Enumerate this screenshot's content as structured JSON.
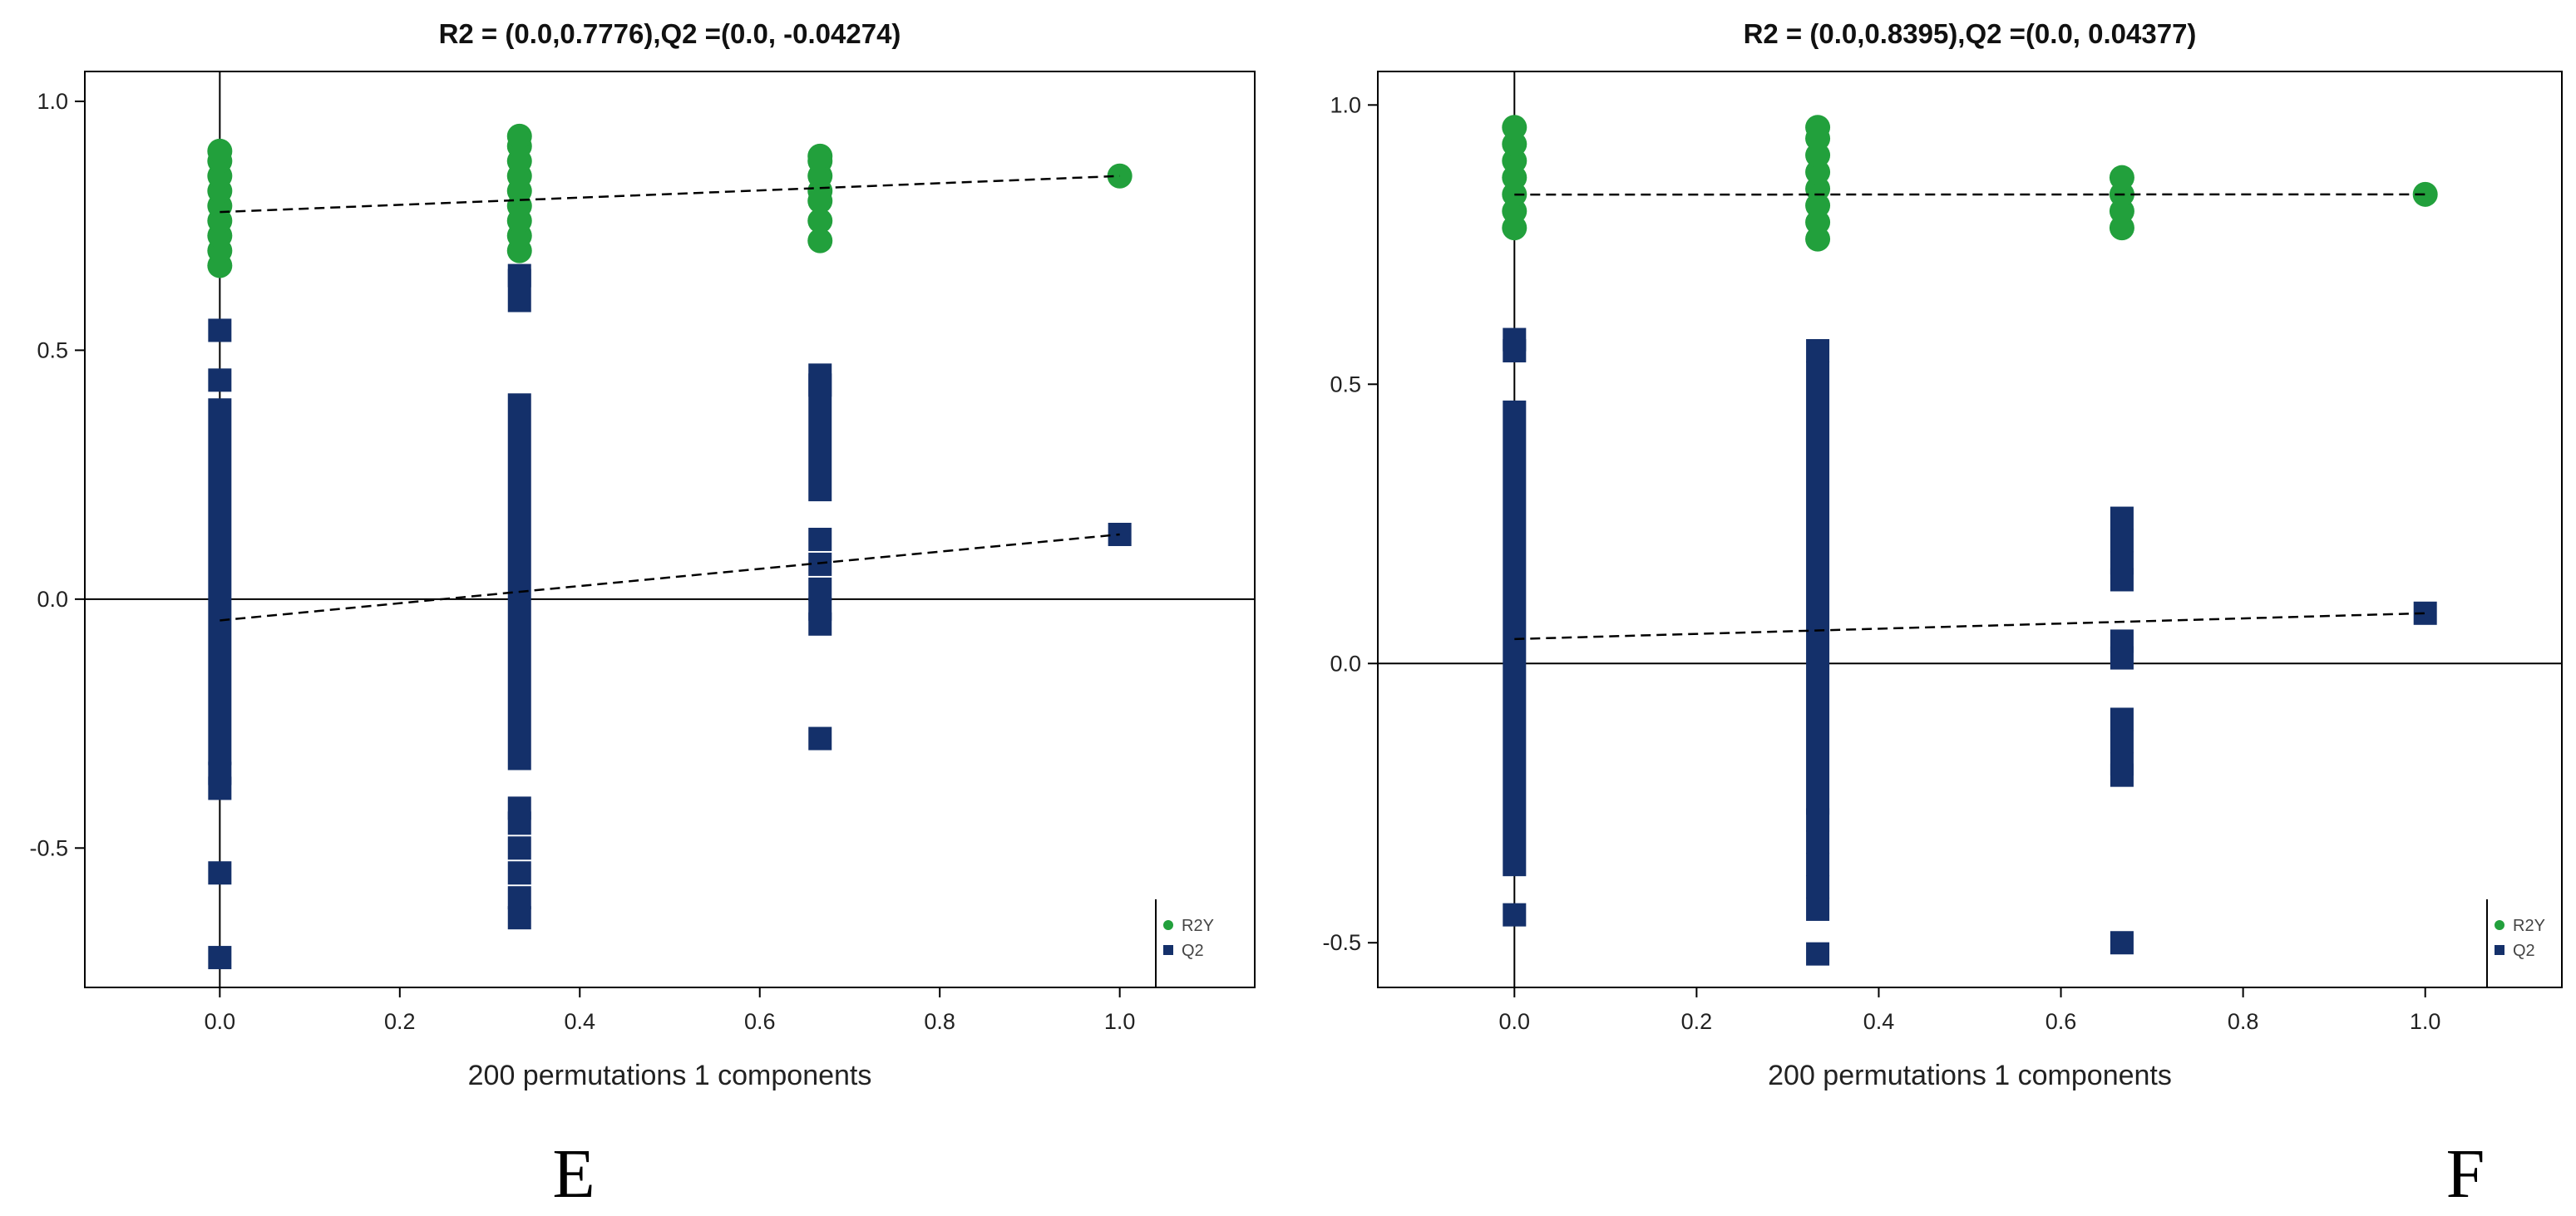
{
  "chart_data": [
    {
      "type": "scatter",
      "panel_label": "E",
      "title": "R2 = (0.0,0.7776),Q2 =(0.0, -0.04274)",
      "xlabel": "200 permutations 1 components",
      "ylabel": "",
      "xlim": [
        -0.15,
        1.15
      ],
      "ylim": [
        -0.78,
        1.06
      ],
      "xticks": [
        0.0,
        0.2,
        0.4,
        0.6,
        0.8,
        1.0
      ],
      "xtick_labels": [
        "0.0",
        "0.2",
        "0.4",
        "0.6",
        "0.8",
        "1.0"
      ],
      "yticks": [
        -0.5,
        0.0,
        0.5,
        1.0
      ],
      "ytick_labels": [
        "-0.5",
        "0.0",
        "0.5",
        "1.0"
      ],
      "legend_position": "bottom-right",
      "series": [
        {
          "name": "R2Y",
          "marker": "circle",
          "color": "#22a03c",
          "points": [
            [
              0.0,
              0.67
            ],
            [
              0.0,
              0.7
            ],
            [
              0.0,
              0.73
            ],
            [
              0.0,
              0.76
            ],
            [
              0.0,
              0.79
            ],
            [
              0.0,
              0.82
            ],
            [
              0.0,
              0.85
            ],
            [
              0.0,
              0.88
            ],
            [
              0.0,
              0.9
            ],
            [
              0.333,
              0.7
            ],
            [
              0.333,
              0.73
            ],
            [
              0.333,
              0.76
            ],
            [
              0.333,
              0.79
            ],
            [
              0.333,
              0.82
            ],
            [
              0.333,
              0.85
            ],
            [
              0.333,
              0.88
            ],
            [
              0.333,
              0.91
            ],
            [
              0.333,
              0.93
            ],
            [
              0.667,
              0.72
            ],
            [
              0.667,
              0.76
            ],
            [
              0.667,
              0.8
            ],
            [
              0.667,
              0.82
            ],
            [
              0.667,
              0.85
            ],
            [
              0.667,
              0.88
            ],
            [
              0.667,
              0.89
            ],
            [
              1.0,
              0.85
            ]
          ]
        },
        {
          "name": "Q2",
          "marker": "square",
          "color": "#14306a",
          "points": [
            [
              0.0,
              0.54
            ],
            [
              0.0,
              0.44
            ],
            [
              0.0,
              -0.55
            ],
            [
              0.0,
              -0.72
            ],
            [
              0.0,
              -0.38
            ],
            [
              0.0,
              -0.35
            ],
            [
              0.333,
              0.65
            ],
            [
              0.333,
              -0.42
            ],
            [
              0.333,
              -0.45
            ],
            [
              0.333,
              -0.5
            ],
            [
              0.333,
              -0.55
            ],
            [
              0.333,
              -0.6
            ],
            [
              0.333,
              -0.64
            ],
            [
              0.667,
              0.43
            ],
            [
              0.667,
              0.12
            ],
            [
              0.667,
              0.07
            ],
            [
              0.667,
              0.02
            ],
            [
              0.667,
              -0.02
            ],
            [
              0.667,
              -0.05
            ],
            [
              0.667,
              -0.28
            ],
            [
              1.0,
              0.13
            ]
          ],
          "segments": [
            {
              "x": 0.0,
              "from": -0.31,
              "to": 0.38
            },
            {
              "x": 0.333,
              "from": -0.32,
              "to": 0.39
            },
            {
              "x": 0.333,
              "from": 0.6,
              "to": 0.64
            },
            {
              "x": 0.667,
              "from": 0.22,
              "to": 0.45
            }
          ]
        }
      ],
      "regression_lines": [
        {
          "series": "R2Y",
          "from": [
            0.0,
            0.7776
          ],
          "to": [
            1.0,
            0.85
          ]
        },
        {
          "series": "Q2",
          "from": [
            0.0,
            -0.04274
          ],
          "to": [
            1.0,
            0.13
          ]
        }
      ]
    },
    {
      "type": "scatter",
      "panel_label": "F",
      "title": "R2 = (0.0,0.8395),Q2 =(0.0, 0.04377)",
      "xlabel": "200 permutations 1 components",
      "ylabel": "",
      "xlim": [
        -0.15,
        1.15
      ],
      "ylim": [
        -0.58,
        1.06
      ],
      "xticks": [
        0.0,
        0.2,
        0.4,
        0.6,
        0.8,
        1.0
      ],
      "xtick_labels": [
        "0.0",
        "0.2",
        "0.4",
        "0.6",
        "0.8",
        "1.0"
      ],
      "yticks": [
        -0.5,
        0.0,
        0.5,
        1.0
      ],
      "ytick_labels": [
        "-0.5",
        "0.0",
        "0.5",
        "1.0"
      ],
      "legend_position": "bottom-right",
      "series": [
        {
          "name": "R2Y",
          "marker": "circle",
          "color": "#22a03c",
          "points": [
            [
              0.0,
              0.78
            ],
            [
              0.0,
              0.81
            ],
            [
              0.0,
              0.84
            ],
            [
              0.0,
              0.87
            ],
            [
              0.0,
              0.9
            ],
            [
              0.0,
              0.93
            ],
            [
              0.0,
              0.96
            ],
            [
              0.333,
              0.76
            ],
            [
              0.333,
              0.79
            ],
            [
              0.333,
              0.82
            ],
            [
              0.333,
              0.85
            ],
            [
              0.333,
              0.88
            ],
            [
              0.333,
              0.91
            ],
            [
              0.333,
              0.94
            ],
            [
              0.333,
              0.96
            ],
            [
              0.667,
              0.78
            ],
            [
              0.667,
              0.81
            ],
            [
              0.667,
              0.84
            ],
            [
              0.667,
              0.87
            ],
            [
              1.0,
              0.84
            ]
          ]
        },
        {
          "name": "Q2",
          "marker": "square",
          "color": "#14306a",
          "points": [
            [
              0.0,
              0.58
            ],
            [
              0.0,
              0.56
            ],
            [
              0.0,
              -0.45
            ],
            [
              0.333,
              0.56
            ],
            [
              0.333,
              -0.28
            ],
            [
              0.333,
              -0.32
            ],
            [
              0.333,
              -0.36
            ],
            [
              0.333,
              -0.4
            ],
            [
              0.333,
              -0.44
            ],
            [
              0.333,
              -0.52
            ],
            [
              0.667,
              0.26
            ],
            [
              0.667,
              0.22
            ],
            [
              0.667,
              0.18
            ],
            [
              0.667,
              0.15
            ],
            [
              0.667,
              0.04
            ],
            [
              0.667,
              0.01
            ],
            [
              0.667,
              -0.1
            ],
            [
              0.667,
              -0.14
            ],
            [
              0.667,
              -0.18
            ],
            [
              0.667,
              -0.2
            ],
            [
              0.667,
              -0.5
            ],
            [
              1.0,
              0.09
            ]
          ],
          "segments": [
            {
              "x": 0.0,
              "from": -0.36,
              "to": 0.45
            },
            {
              "x": 0.333,
              "from": -0.25,
              "to": 0.52
            }
          ]
        }
      ],
      "regression_lines": [
        {
          "series": "R2Y",
          "from": [
            0.0,
            0.8395
          ],
          "to": [
            1.0,
            0.84
          ]
        },
        {
          "series": "Q2",
          "from": [
            0.0,
            0.04377
          ],
          "to": [
            1.0,
            0.09
          ]
        }
      ]
    }
  ]
}
